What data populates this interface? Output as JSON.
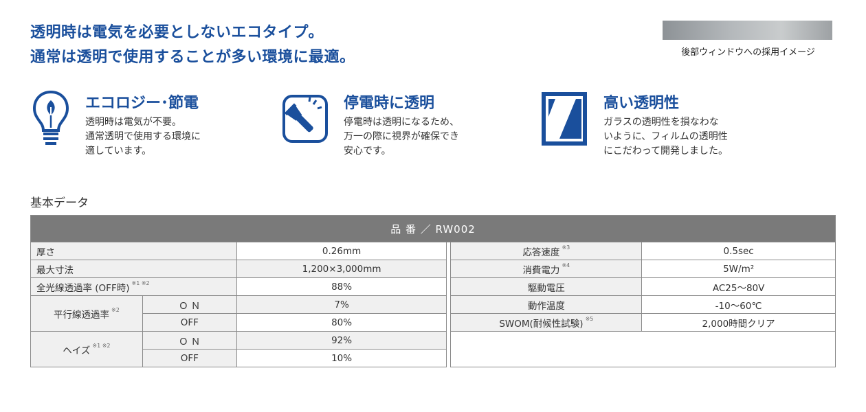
{
  "headline": {
    "line1": "透明時は電気を必要としないエコタイプ。",
    "line2": "通常は透明で使用することが多い環境に最適。"
  },
  "side_image": {
    "caption": "後部ウィンドウへの採用イメージ"
  },
  "features": [
    {
      "title": "エコロジー･節電",
      "lines": [
        "透明時は電気が不要。",
        "通常透明で使用する環境に",
        "適しています。"
      ],
      "icon": "eco-bulb-icon"
    },
    {
      "title": "停電時に透明",
      "lines": [
        "停電時は透明になるため、",
        "万一の際に視界が確保でき",
        "安心です。"
      ],
      "icon": "flashlight-icon"
    },
    {
      "title": "高い透明性",
      "lines": [
        "ガラスの透明性を損なわな",
        "いように、フィルムの透明性",
        "にこだわって開発しました。"
      ],
      "icon": "transparency-icon"
    }
  ],
  "section_title": "基本データ",
  "table": {
    "header": "品 番 ／ RW002",
    "thickness": {
      "label": "厚さ",
      "value": "0.26mm"
    },
    "max_size": {
      "label": "最大寸法",
      "value": "1,200×3,000mm"
    },
    "total_transmittance": {
      "label": "全光線透過率 (OFF時)",
      "note": "※1 ※2",
      "value": "88%"
    },
    "parallel_transmittance": {
      "label": "平行線透過率",
      "note": "※2",
      "on_label": "Ｏ Ｎ",
      "on_value": "7%",
      "off_label": "OFF",
      "off_value": "80%"
    },
    "haze": {
      "label": "ヘイズ",
      "note": "※1 ※2",
      "on_label": "Ｏ Ｎ",
      "on_value": "92%",
      "off_label": "OFF",
      "off_value": "10%"
    },
    "response_speed": {
      "label": "応答速度",
      "note": "※3",
      "value": "0.5sec"
    },
    "power": {
      "label": "消費電力",
      "note": "※4",
      "value": "5W/m²"
    },
    "drive_voltage": {
      "label": "駆動電圧",
      "value": "AC25～80V"
    },
    "operating_temp": {
      "label": "動作温度",
      "value": "-10～60℃"
    },
    "swom": {
      "label": "SWOM(耐候性試験)",
      "note": "※5",
      "value": "2,000時間クリア"
    }
  },
  "colors": {
    "brand_blue": "#1a4f9c",
    "table_header": "#7a7a7a",
    "row_gray": "#f0f0f0"
  }
}
